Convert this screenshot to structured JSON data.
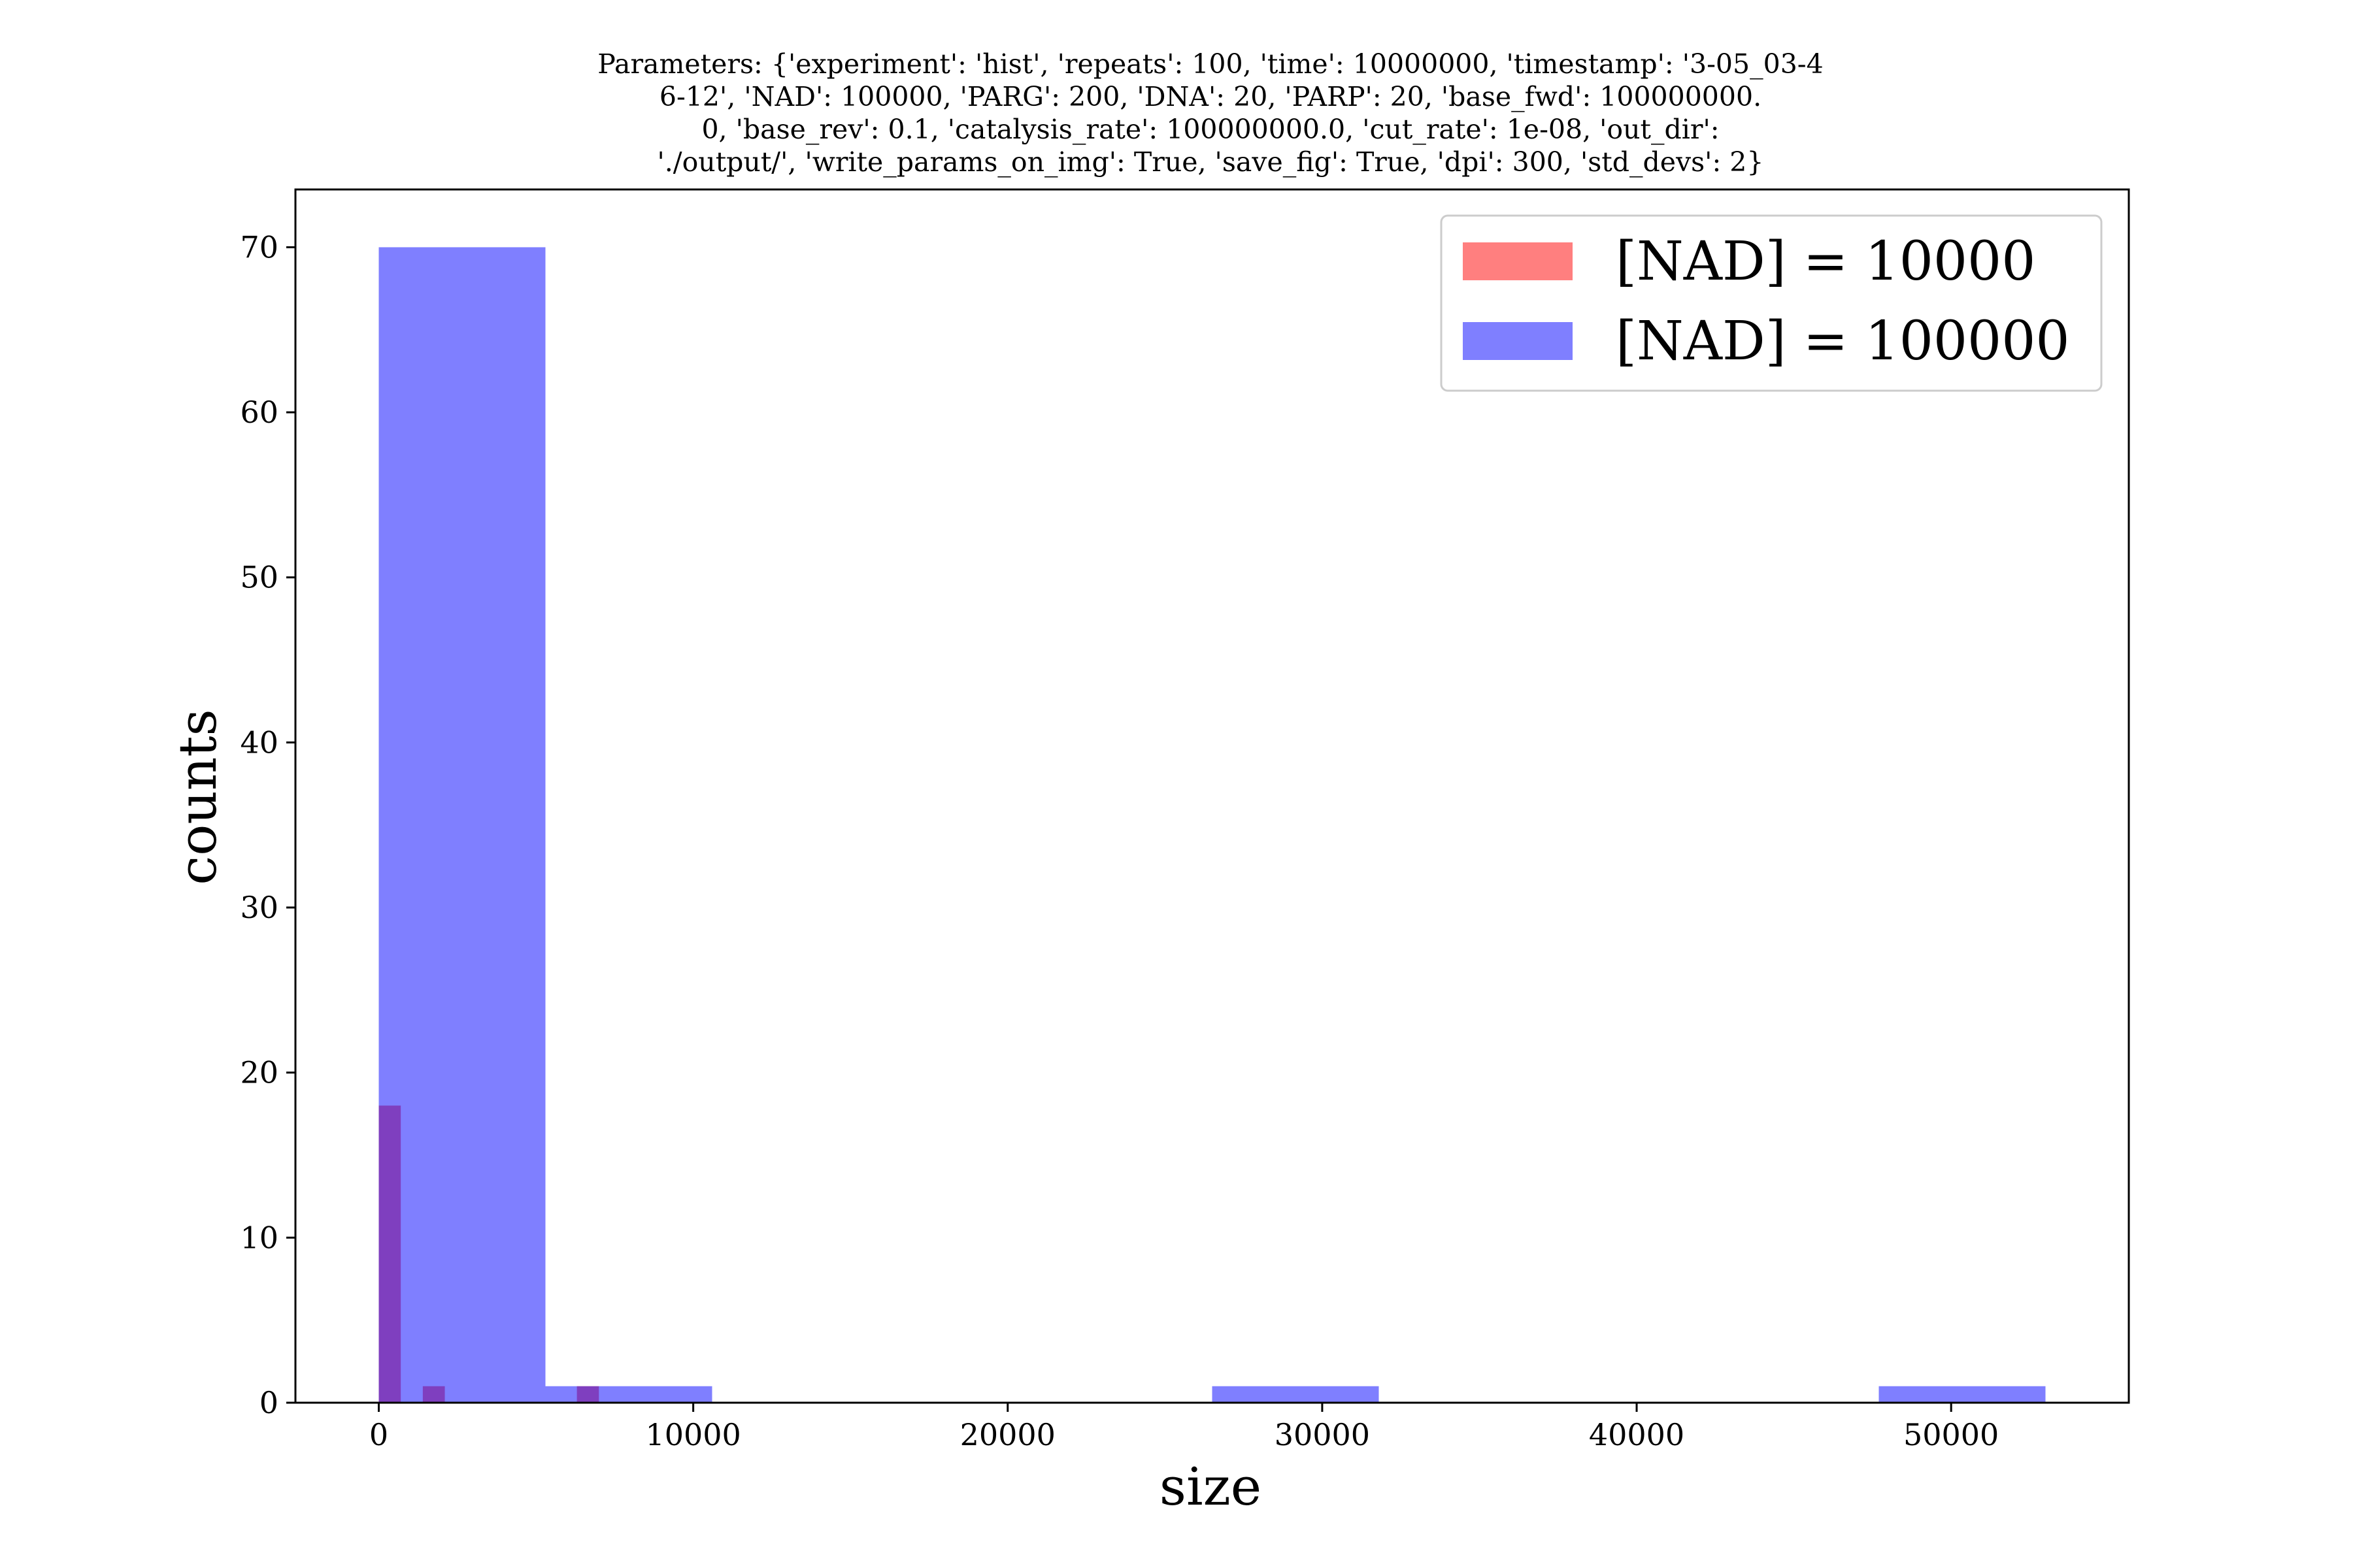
{
  "chart_data": {
    "type": "bar",
    "title_lines": [
      "Parameters: {'experiment': 'hist', 'repeats': 100, 'time': 10000000, 'timestamp': '3-05_03-4",
      "6-12', 'NAD': 100000, 'PARG': 200, 'DNA': 20, 'PARP': 20, 'base_fwd': 100000000.",
      "0, 'base_rev': 0.1, 'catalysis_rate': 100000000.0, 'cut_rate': 1e-08, 'out_dir':",
      "'./output/', 'write_params_on_img': True, 'save_fig': True, 'dpi': 300, 'std_devs': 2}"
    ],
    "xlabel": "size",
    "ylabel": "counts",
    "xlim": [
      -2650,
      55650
    ],
    "ylim": [
      0,
      73.5
    ],
    "xticks": [
      0,
      10000,
      20000,
      30000,
      40000,
      50000
    ],
    "yticks": [
      0,
      10,
      20,
      30,
      40,
      50,
      60,
      70
    ],
    "legend_position": "upper right",
    "series": [
      {
        "name": "[NAD] = 10000",
        "color": "#ff0000",
        "alpha": 0.5,
        "bins": [
          {
            "x0": 0,
            "x1": 700,
            "count": 18
          },
          {
            "x0": 1400,
            "x1": 2100,
            "count": 1
          },
          {
            "x0": 6300,
            "x1": 7000,
            "count": 1
          }
        ]
      },
      {
        "name": "[NAD] = 100000",
        "color": "#0000ff",
        "alpha": 0.5,
        "bins": [
          {
            "x0": 0,
            "x1": 5300,
            "count": 70
          },
          {
            "x0": 5300,
            "x1": 10600,
            "count": 1
          },
          {
            "x0": 26500,
            "x1": 31800,
            "count": 1
          },
          {
            "x0": 47700,
            "x1": 53000,
            "count": 1
          }
        ]
      }
    ]
  }
}
